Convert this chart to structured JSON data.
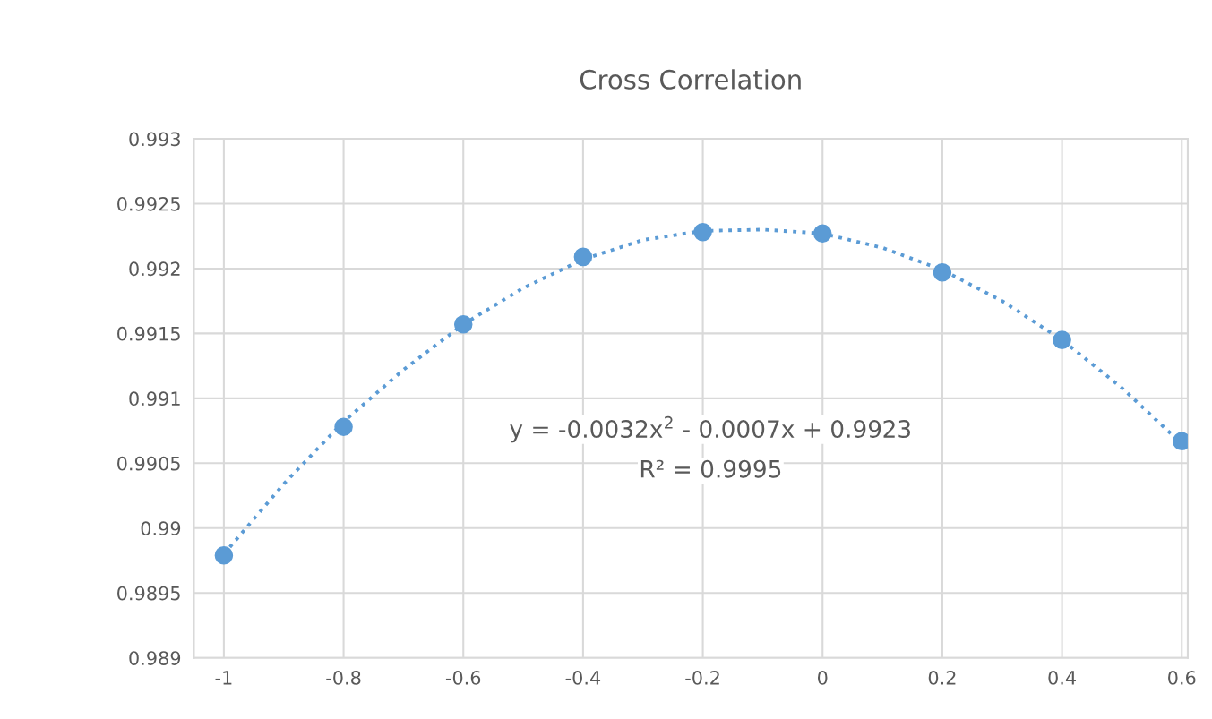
{
  "chart_data": {
    "type": "scatter",
    "title": "Cross Correlation",
    "x": [
      -1,
      -0.8,
      -0.6,
      -0.4,
      -0.2,
      0,
      0.2,
      0.4,
      0.6
    ],
    "series": [
      {
        "color": "#5b9bd5",
        "marker": "circle",
        "values": [
          0.98979,
          0.99078,
          0.99157,
          0.99209,
          0.99228,
          0.99227,
          0.99197,
          0.99145,
          0.99067
        ]
      },
      {
        "type": "line",
        "color": "#5b9bd5",
        "line_style": "dotted",
        "marker": "none",
        "x": [
          -1,
          -0.9,
          -0.8,
          -0.7,
          -0.6,
          -0.5,
          -0.4,
          -0.3,
          -0.2,
          -0.1,
          0,
          0.1,
          0.2,
          0.3,
          0.4,
          0.5,
          0.6
        ],
        "values": [
          0.9898,
          0.99034,
          0.99082,
          0.99122,
          0.99157,
          0.99185,
          0.99207,
          0.99222,
          0.99229,
          0.9923,
          0.99227,
          0.99216,
          0.99199,
          0.99175,
          0.99145,
          0.99108,
          0.99065
        ]
      }
    ],
    "annotations": [
      "y = -0.0032x$^{2}$ - 0.0007x + 0.9923",
      "R² = 0.9995"
    ],
    "xlim": [
      -1.05,
      0.61
    ],
    "xticks": [
      -1,
      -0.8,
      -0.6,
      -0.4,
      -0.2,
      0,
      0.2,
      0.4,
      0.6
    ],
    "ylim": [
      0.989,
      0.993
    ],
    "yticks": [
      0.989,
      0.9895,
      0.99,
      0.9905,
      0.991,
      0.9915,
      0.992,
      0.9925,
      0.993
    ],
    "grid": true,
    "legend": false
  }
}
